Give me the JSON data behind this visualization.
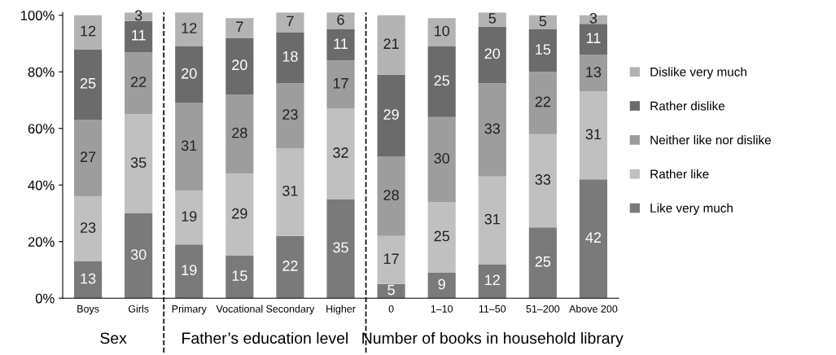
{
  "chart_data": {
    "type": "bar",
    "stacked": true,
    "data_labels": true,
    "legend": "right",
    "grid": false,
    "categories": [
      "Boys",
      "Girls",
      "Primary",
      "Vocational",
      "Secondary",
      "Higher",
      "0",
      "1–10",
      "11–50",
      "51–200",
      "Above 200"
    ],
    "series": [
      {
        "name": "Like very much",
        "color": "#7a7a7a",
        "values": [
          13,
          30,
          19,
          15,
          22,
          35,
          5,
          9,
          12,
          25,
          42
        ]
      },
      {
        "name": "Rather like",
        "color": "#c0c0c0",
        "values": [
          23,
          35,
          19,
          29,
          31,
          32,
          17,
          25,
          31,
          33,
          31
        ]
      },
      {
        "name": "Neither like nor dislike",
        "color": "#9d9d9d",
        "values": [
          27,
          22,
          31,
          28,
          23,
          17,
          28,
          30,
          33,
          22,
          13
        ]
      },
      {
        "name": "Rather dislike",
        "color": "#6b6b6b",
        "values": [
          25,
          11,
          20,
          20,
          18,
          11,
          29,
          25,
          20,
          15,
          11
        ]
      },
      {
        "name": "Dislike very much",
        "color": "#b3b3b3",
        "values": [
          12,
          3,
          12,
          7,
          7,
          6,
          21,
          10,
          5,
          5,
          3
        ]
      }
    ],
    "ylim": [
      0,
      101
    ],
    "yticks": [
      {
        "value": 0,
        "label": "0%"
      },
      {
        "value": 20,
        "label": "20%"
      },
      {
        "value": 40,
        "label": "40%"
      },
      {
        "value": 60,
        "label": "60%"
      },
      {
        "value": 80,
        "label": "80%"
      },
      {
        "value": 100,
        "label": "100%"
      }
    ],
    "annotations": [
      "Sex",
      "Father’s education level",
      "Number of books in household library"
    ]
  }
}
